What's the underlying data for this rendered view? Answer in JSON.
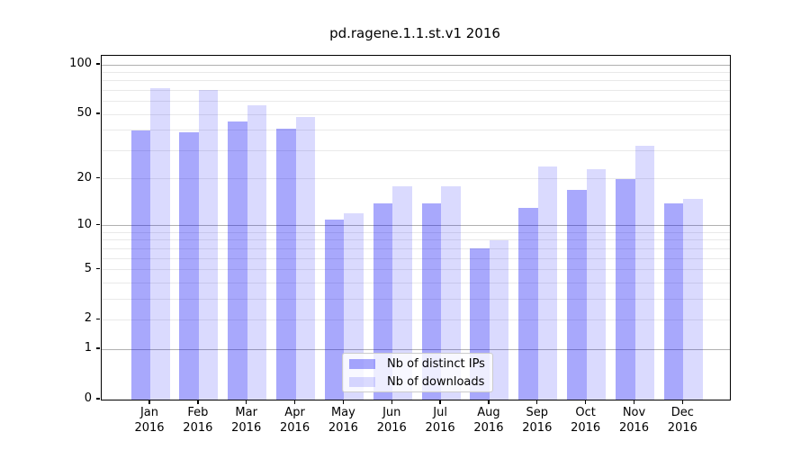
{
  "chart_data": {
    "type": "bar",
    "title": "pd.ragene.1.1.st.v1 2016",
    "categories": [
      "Jan",
      "Feb",
      "Mar",
      "Apr",
      "May",
      "Jun",
      "Jul",
      "Aug",
      "Sep",
      "Oct",
      "Nov",
      "Dec"
    ],
    "x_tick_second_line": "2016",
    "series": [
      {
        "name": "Nb of distinct IPs",
        "fill": "rgba(0,0,245,0.34)",
        "values": [
          40,
          39,
          45,
          41,
          11,
          14,
          14,
          7,
          13,
          17,
          20,
          14
        ]
      },
      {
        "name": "Nb of downloads",
        "fill": "rgba(0,0,245,0.145)",
        "values": [
          72,
          70,
          57,
          48,
          12,
          18,
          18,
          8,
          24,
          23,
          32,
          15
        ]
      }
    ],
    "y_axis": {
      "scale": "log1p",
      "tick_labels": [
        0,
        1,
        2,
        5,
        10,
        20,
        50,
        100
      ],
      "major_gridlines": [
        1,
        10,
        100
      ],
      "minor_gridlines": [
        2,
        3,
        4,
        5,
        6,
        7,
        8,
        9,
        20,
        30,
        40,
        50,
        60,
        70,
        80,
        90
      ],
      "max": 100
    },
    "legend_position": "bottom-center",
    "colors": {
      "major_grid": "#b0b0b0",
      "minor_grid": "#e9e9e9",
      "axis": "#000000"
    }
  }
}
